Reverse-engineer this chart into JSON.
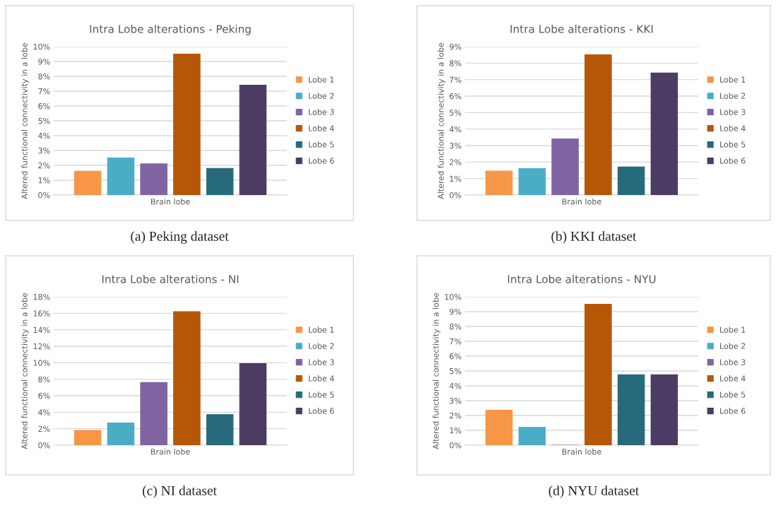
{
  "chart_data": [
    {
      "type": "bar",
      "title": "Intra Lobe alterations - Peking",
      "ylabel": "Altered functional connectivity in a lobe",
      "categories": [
        "Brain lobe"
      ],
      "series": [
        {
          "name": "Lobe 1",
          "color": "#f79646",
          "values": [
            1.6
          ]
        },
        {
          "name": "Lobe 2",
          "color": "#4bacc6",
          "values": [
            2.5
          ]
        },
        {
          "name": "Lobe 3",
          "color": "#8064a2",
          "values": [
            2.1
          ]
        },
        {
          "name": "Lobe 4",
          "color": "#b65708",
          "values": [
            9.5
          ]
        },
        {
          "name": "Lobe 5",
          "color": "#276a7c",
          "values": [
            1.8
          ]
        },
        {
          "name": "Lobe 6",
          "color": "#4c3b62",
          "values": [
            7.4
          ]
        }
      ],
      "ylim": [
        0,
        10
      ],
      "yticks": [
        {
          "value": 0,
          "label": "0%"
        },
        {
          "value": 1,
          "label": "1%"
        },
        {
          "value": 2,
          "label": "2%"
        },
        {
          "value": 3,
          "label": "3%"
        },
        {
          "value": 4,
          "label": "4%"
        },
        {
          "value": 5,
          "label": "5%"
        },
        {
          "value": 6,
          "label": "6%"
        },
        {
          "value": 7,
          "label": "7%"
        },
        {
          "value": 8,
          "label": "8%"
        },
        {
          "value": 9,
          "label": "9%"
        },
        {
          "value": 10,
          "label": "10%"
        }
      ],
      "grid": "y",
      "legend": "right",
      "annotations": [
        "(a) Peking dataset"
      ]
    },
    {
      "type": "bar",
      "title": "Intra Lobe alterations - KKI",
      "ylabel": "Altered functional connectivity in a lobe",
      "categories": [
        "Brain lobe"
      ],
      "series": [
        {
          "name": "Lobe 1",
          "color": "#f79646",
          "values": [
            1.45
          ]
        },
        {
          "name": "Lobe 2",
          "color": "#4bacc6",
          "values": [
            1.6
          ]
        },
        {
          "name": "Lobe 3",
          "color": "#8064a2",
          "values": [
            3.4
          ]
        },
        {
          "name": "Lobe 4",
          "color": "#b65708",
          "values": [
            8.5
          ]
        },
        {
          "name": "Lobe 5",
          "color": "#276a7c",
          "values": [
            1.7
          ]
        },
        {
          "name": "Lobe 6",
          "color": "#4c3b62",
          "values": [
            7.4
          ]
        }
      ],
      "ylim": [
        0,
        9
      ],
      "yticks": [
        {
          "value": 0,
          "label": "0%"
        },
        {
          "value": 1,
          "label": "1%"
        },
        {
          "value": 2,
          "label": "2%"
        },
        {
          "value": 3,
          "label": "3%"
        },
        {
          "value": 4,
          "label": "4%"
        },
        {
          "value": 5,
          "label": "5%"
        },
        {
          "value": 6,
          "label": "6%"
        },
        {
          "value": 7,
          "label": "7%"
        },
        {
          "value": 8,
          "label": "8%"
        },
        {
          "value": 9,
          "label": "9%"
        }
      ],
      "grid": "y",
      "legend": "right",
      "annotations": [
        "(b) KKI dataset"
      ]
    },
    {
      "type": "bar",
      "title": "Intra Lobe alterations - NI",
      "ylabel": "Altered functional connectivity in a lobe",
      "categories": [
        "Brain lobe"
      ],
      "series": [
        {
          "name": "Lobe 1",
          "color": "#f79646",
          "values": [
            1.8
          ]
        },
        {
          "name": "Lobe 2",
          "color": "#4bacc6",
          "values": [
            2.7
          ]
        },
        {
          "name": "Lobe 3",
          "color": "#8064a2",
          "values": [
            7.6
          ]
        },
        {
          "name": "Lobe 4",
          "color": "#b65708",
          "values": [
            16.2
          ]
        },
        {
          "name": "Lobe 5",
          "color": "#276a7c",
          "values": [
            3.7
          ]
        },
        {
          "name": "Lobe 6",
          "color": "#4c3b62",
          "values": [
            9.9
          ]
        }
      ],
      "ylim": [
        0,
        18
      ],
      "yticks": [
        {
          "value": 0,
          "label": "0%"
        },
        {
          "value": 2,
          "label": "2%"
        },
        {
          "value": 4,
          "label": "4%"
        },
        {
          "value": 6,
          "label": "6%"
        },
        {
          "value": 8,
          "label": "8%"
        },
        {
          "value": 10,
          "label": "10%"
        },
        {
          "value": 12,
          "label": "12%"
        },
        {
          "value": 14,
          "label": "14%"
        },
        {
          "value": 16,
          "label": "16%"
        },
        {
          "value": 18,
          "label": "18%"
        }
      ],
      "grid": "y",
      "legend": "right",
      "annotations": [
        "(c) NI dataset"
      ]
    },
    {
      "type": "bar",
      "title": "Intra Lobe alterations - NYU",
      "ylabel": "Altered functional connectivity in a lobe",
      "categories": [
        "Brain lobe"
      ],
      "series": [
        {
          "name": "Lobe 1",
          "color": "#f79646",
          "values": [
            2.35
          ]
        },
        {
          "name": "Lobe 2",
          "color": "#4bacc6",
          "values": [
            1.2
          ]
        },
        {
          "name": "Lobe 3",
          "color": "#8064a2",
          "values": [
            0
          ]
        },
        {
          "name": "Lobe 4",
          "color": "#b65708",
          "values": [
            9.5
          ]
        },
        {
          "name": "Lobe 5",
          "color": "#276a7c",
          "values": [
            4.75
          ]
        },
        {
          "name": "Lobe 6",
          "color": "#4c3b62",
          "values": [
            4.75
          ]
        }
      ],
      "ylim": [
        0,
        10
      ],
      "yticks": [
        {
          "value": 0,
          "label": "0%"
        },
        {
          "value": 1,
          "label": "1%"
        },
        {
          "value": 2,
          "label": "2%"
        },
        {
          "value": 3,
          "label": "3%"
        },
        {
          "value": 4,
          "label": "4%"
        },
        {
          "value": 5,
          "label": "5%"
        },
        {
          "value": 6,
          "label": "6%"
        },
        {
          "value": 7,
          "label": "7%"
        },
        {
          "value": 8,
          "label": "8%"
        },
        {
          "value": 9,
          "label": "9%"
        },
        {
          "value": 10,
          "label": "10%"
        }
      ],
      "grid": "y",
      "legend": "right",
      "annotations": [
        "(d) NYU dataset"
      ]
    }
  ]
}
